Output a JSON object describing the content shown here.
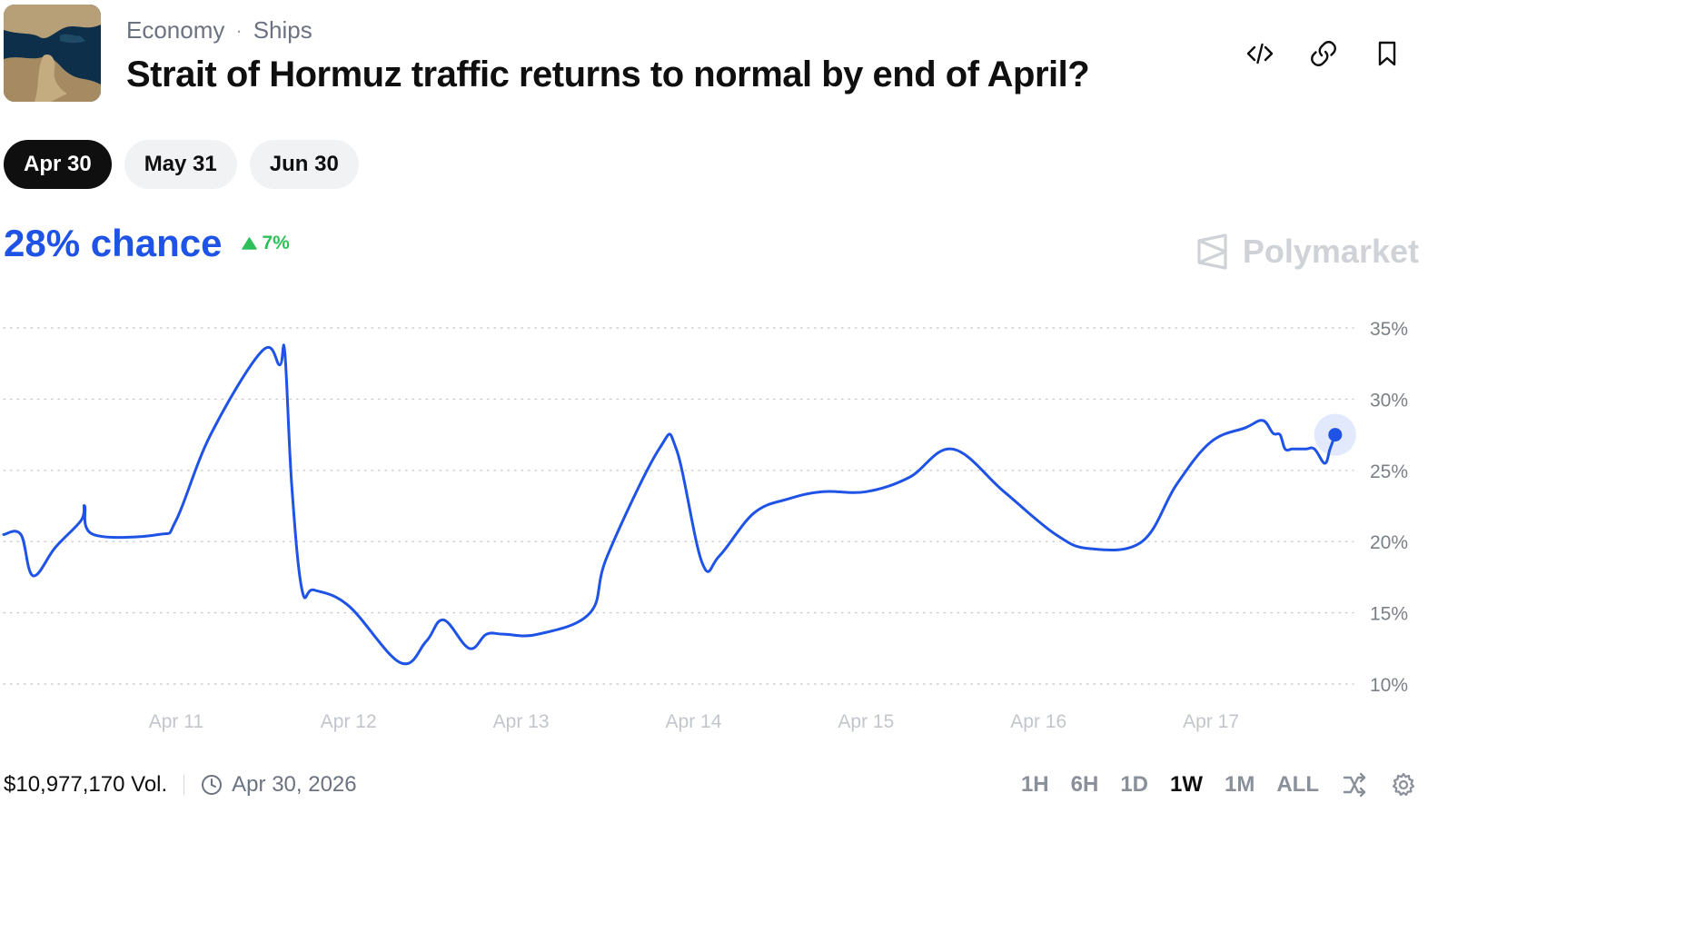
{
  "header": {
    "breadcrumbs": [
      "Economy",
      "Ships"
    ],
    "breadcrumb_sep": "·",
    "title": "Strait of Hormuz traffic returns to normal by end of April?",
    "icons": [
      "code-embed-icon",
      "link-icon",
      "bookmark-icon"
    ]
  },
  "tabs": [
    {
      "label": "Apr 30",
      "active": true
    },
    {
      "label": "May 31",
      "active": false
    },
    {
      "label": "Jun 30",
      "active": false
    }
  ],
  "summary": {
    "chance_label": "28% chance",
    "change_label": "7%",
    "change_direction": "up",
    "change_color": "#2fbf58",
    "accent_color": "#1e53e5"
  },
  "brand": {
    "name": "Polymarket"
  },
  "footer": {
    "volume": "$10,977,170 Vol.",
    "end_date": "Apr 30, 2026",
    "ranges": [
      {
        "label": "1H",
        "active": false
      },
      {
        "label": "6H",
        "active": false
      },
      {
        "label": "1D",
        "active": false
      },
      {
        "label": "1W",
        "active": true
      },
      {
        "label": "1M",
        "active": false
      },
      {
        "label": "ALL",
        "active": false
      }
    ]
  },
  "chart_data": {
    "type": "line",
    "series": [
      {
        "color": "#1e53e5",
        "x": [
          10.0,
          10.1,
          10.17,
          10.3,
          10.45,
          10.47,
          10.52,
          10.9,
          11.0,
          11.2,
          11.5,
          11.6,
          11.63,
          11.67,
          11.73,
          11.8,
          12.0,
          12.3,
          12.45,
          12.55,
          12.7,
          12.8,
          12.9,
          13.1,
          13.4,
          13.5,
          13.8,
          13.9,
          14.05,
          14.15,
          14.35,
          14.55,
          14.75,
          15.0,
          15.25,
          15.5,
          15.8,
          16.1,
          16.3,
          16.6,
          16.8,
          17.0,
          17.2,
          17.3,
          17.36,
          17.4,
          17.43,
          17.47,
          17.5,
          17.55,
          17.6,
          17.66,
          17.69,
          17.72
        ]
      },
      {
        "x_note": "",
        "y": [
          20.5,
          20.5,
          17.6,
          19.6,
          21.5,
          22.5,
          20.5,
          20.5,
          21.5,
          27.5,
          33.4,
          32.4,
          33.3,
          24.0,
          16.6,
          16.6,
          15.5,
          11.5,
          13.0,
          14.5,
          12.5,
          13.5,
          13.5,
          13.5,
          15.0,
          19.0,
          26.5,
          26.5,
          18.5,
          19.0,
          22.0,
          23.0,
          23.5,
          23.5,
          24.5,
          26.5,
          23.5,
          20.5,
          19.5,
          20.0,
          24.0,
          27.0,
          28.0,
          28.5,
          27.6,
          27.5,
          26.5,
          26.5,
          26.5,
          26.5,
          26.5,
          25.5,
          26.5,
          27.5
        ]
      }
    ],
    "x_ticks": [
      {
        "x": 11,
        "label": "Apr 11"
      },
      {
        "x": 12,
        "label": "Apr 12"
      },
      {
        "x": 13,
        "label": "Apr 13"
      },
      {
        "x": 14,
        "label": "Apr 14"
      },
      {
        "x": 15,
        "label": "Apr 15"
      },
      {
        "x": 16,
        "label": "Apr 16"
      },
      {
        "x": 17,
        "label": "Apr 17"
      }
    ],
    "y_ticks": [
      {
        "y": 35,
        "label": "35%"
      },
      {
        "y": 30,
        "label": "30%"
      },
      {
        "y": 25,
        "label": "25%"
      },
      {
        "y": 20,
        "label": "20%"
      },
      {
        "y": 15,
        "label": "15%"
      },
      {
        "y": 10,
        "label": "10%"
      }
    ],
    "ylim": [
      10,
      35
    ],
    "xlim": [
      10.0,
      17.8
    ],
    "grid": "horizontal-dotted",
    "legend": "none"
  }
}
